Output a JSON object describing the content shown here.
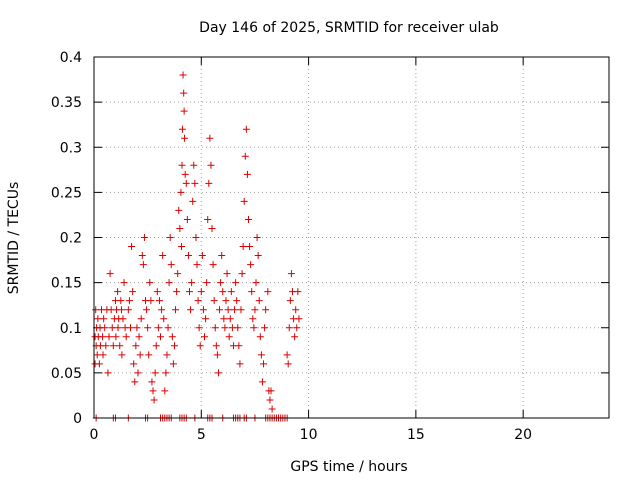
{
  "chart_data": {
    "type": "scatter",
    "title": "Day 146 of 2025, SRMTID for receiver ulab",
    "xlabel": "GPS time / hours",
    "ylabel": "SRMTID / TECUs",
    "xlim": [
      0,
      24
    ],
    "ylim": [
      0,
      0.4
    ],
    "x_ticks": [
      0,
      5,
      10,
      15,
      20
    ],
    "y_ticks": [
      0,
      0.05,
      0.1,
      0.15,
      0.2,
      0.25,
      0.3,
      0.35,
      0.4
    ],
    "x_tick_labels": [
      "0",
      "5",
      "10",
      "15",
      "20"
    ],
    "y_tick_labels": [
      "0",
      "0.05",
      "0.1",
      "0.15",
      "0.2",
      "0.25",
      "0.3",
      "0.35",
      "0.4"
    ],
    "grid": true,
    "marker": "+",
    "color": "#dd0000",
    "series": [
      {
        "name": "SRMTID",
        "points": [
          [
            0.05,
            0.06
          ],
          [
            0.05,
            0.09
          ],
          [
            0.08,
            0.12
          ],
          [
            0.1,
            0.08
          ],
          [
            0.12,
            0.1
          ],
          [
            0.15,
            0.07
          ],
          [
            0.18,
            0.11
          ],
          [
            0.2,
            0.09
          ],
          [
            0.25,
            0.06
          ],
          [
            0.28,
            0.1
          ],
          [
            0.3,
            0.08
          ],
          [
            0.35,
            0.12
          ],
          [
            0.4,
            0.09
          ],
          [
            0.42,
            0.07
          ],
          [
            0.45,
            0.11
          ],
          [
            0.5,
            0.1
          ],
          [
            0.55,
            0.08
          ],
          [
            0.6,
            0.12
          ],
          [
            0.65,
            0.05
          ],
          [
            0.7,
            0.09
          ],
          [
            0.75,
            0.16
          ],
          [
            0.8,
            0.12
          ],
          [
            0.85,
            0.1
          ],
          [
            0.9,
            0.08
          ],
          [
            0.95,
            0.11
          ],
          [
            1.0,
            0.13
          ],
          [
            1.02,
            0.09
          ],
          [
            1.05,
            0.12
          ],
          [
            1.1,
            0.14
          ],
          [
            1.12,
            0.1
          ],
          [
            1.15,
            0.11
          ],
          [
            1.2,
            0.08
          ],
          [
            1.25,
            0.13
          ],
          [
            1.28,
            0.12
          ],
          [
            1.3,
            0.07
          ],
          [
            1.35,
            0.11
          ],
          [
            1.4,
            0.15
          ],
          [
            1.45,
            0.1
          ],
          [
            1.5,
            0.09
          ],
          [
            1.6,
            0.12
          ],
          [
            1.65,
            0.13
          ],
          [
            1.7,
            0.1
          ],
          [
            1.75,
            0.19
          ],
          [
            1.8,
            0.14
          ],
          [
            1.85,
            0.06
          ],
          [
            1.9,
            0.04
          ],
          [
            1.95,
            0.08
          ],
          [
            2.0,
            0.1
          ],
          [
            2.05,
            0.05
          ],
          [
            2.1,
            0.09
          ],
          [
            2.15,
            0.07
          ],
          [
            2.2,
            0.11
          ],
          [
            2.25,
            0.18
          ],
          [
            2.3,
            0.17
          ],
          [
            2.35,
            0.2
          ],
          [
            2.4,
            0.13
          ],
          [
            2.45,
            0.12
          ],
          [
            2.5,
            0.1
          ],
          [
            2.55,
            0.07
          ],
          [
            2.6,
            0.15
          ],
          [
            2.65,
            0.13
          ],
          [
            2.7,
            0.04
          ],
          [
            2.75,
            0.03
          ],
          [
            2.8,
            0.02
          ],
          [
            2.85,
            0.05
          ],
          [
            2.9,
            0.08
          ],
          [
            2.95,
            0.14
          ],
          [
            3.0,
            0.1
          ],
          [
            3.05,
            0.13
          ],
          [
            3.1,
            0.09
          ],
          [
            3.15,
            0.12
          ],
          [
            3.2,
            0.18
          ],
          [
            3.25,
            0.11
          ],
          [
            3.3,
            0.03
          ],
          [
            3.35,
            0.05
          ],
          [
            3.4,
            0.07
          ],
          [
            3.45,
            0.1
          ],
          [
            3.5,
            0.15
          ],
          [
            3.55,
            0.2
          ],
          [
            3.6,
            0.17
          ],
          [
            3.65,
            0.09
          ],
          [
            3.7,
            0.06
          ],
          [
            3.75,
            0.08
          ],
          [
            3.8,
            0.12
          ],
          [
            3.85,
            0.14
          ],
          [
            3.9,
            0.16
          ],
          [
            3.95,
            0.23
          ],
          [
            4.0,
            0.21
          ],
          [
            4.05,
            0.25
          ],
          [
            4.08,
            0.19
          ],
          [
            4.1,
            0.28
          ],
          [
            4.12,
            0.32
          ],
          [
            4.15,
            0.38
          ],
          [
            4.18,
            0.36
          ],
          [
            4.2,
            0.34
          ],
          [
            4.22,
            0.31
          ],
          [
            4.25,
            0.27
          ],
          [
            4.3,
            0.26
          ],
          [
            4.35,
            0.22
          ],
          [
            4.4,
            0.18
          ],
          [
            4.45,
            0.14
          ],
          [
            4.5,
            0.12
          ],
          [
            4.55,
            0.15
          ],
          [
            4.6,
            0.24
          ],
          [
            4.65,
            0.28
          ],
          [
            4.7,
            0.26
          ],
          [
            4.75,
            0.2
          ],
          [
            4.8,
            0.17
          ],
          [
            4.85,
            0.13
          ],
          [
            4.9,
            0.1
          ],
          [
            4.95,
            0.08
          ],
          [
            5.0,
            0.14
          ],
          [
            5.05,
            0.18
          ],
          [
            5.1,
            0.12
          ],
          [
            5.15,
            0.09
          ],
          [
            5.2,
            0.11
          ],
          [
            5.25,
            0.15
          ],
          [
            5.3,
            0.22
          ],
          [
            5.35,
            0.26
          ],
          [
            5.4,
            0.31
          ],
          [
            5.45,
            0.28
          ],
          [
            5.5,
            0.21
          ],
          [
            5.55,
            0.17
          ],
          [
            5.6,
            0.13
          ],
          [
            5.65,
            0.1
          ],
          [
            5.7,
            0.08
          ],
          [
            5.75,
            0.07
          ],
          [
            5.8,
            0.05
          ],
          [
            5.85,
            0.12
          ],
          [
            5.9,
            0.15
          ],
          [
            5.95,
            0.18
          ],
          [
            6.0,
            0.14
          ],
          [
            6.05,
            0.11
          ],
          [
            6.1,
            0.1
          ],
          [
            6.15,
            0.13
          ],
          [
            6.2,
            0.16
          ],
          [
            6.25,
            0.12
          ],
          [
            6.3,
            0.09
          ],
          [
            6.35,
            0.11
          ],
          [
            6.4,
            0.14
          ],
          [
            6.45,
            0.1
          ],
          [
            6.5,
            0.08
          ],
          [
            6.55,
            0.12
          ],
          [
            6.6,
            0.15
          ],
          [
            6.65,
            0.13
          ],
          [
            6.7,
            0.1
          ],
          [
            6.75,
            0.08
          ],
          [
            6.8,
            0.06
          ],
          [
            6.85,
            0.12
          ],
          [
            6.9,
            0.16
          ],
          [
            6.95,
            0.19
          ],
          [
            7.0,
            0.24
          ],
          [
            7.05,
            0.29
          ],
          [
            7.1,
            0.32
          ],
          [
            7.15,
            0.27
          ],
          [
            7.2,
            0.22
          ],
          [
            7.25,
            0.19
          ],
          [
            7.3,
            0.17
          ],
          [
            7.35,
            0.14
          ],
          [
            7.4,
            0.11
          ],
          [
            7.45,
            0.1
          ],
          [
            7.5,
            0.12
          ],
          [
            7.55,
            0.15
          ],
          [
            7.6,
            0.2
          ],
          [
            7.65,
            0.18
          ],
          [
            7.7,
            0.13
          ],
          [
            7.75,
            0.09
          ],
          [
            7.8,
            0.07
          ],
          [
            7.85,
            0.04
          ],
          [
            7.9,
            0.06
          ],
          [
            7.95,
            0.1
          ],
          [
            8.0,
            0.12
          ],
          [
            8.1,
            0.14
          ],
          [
            8.15,
            0.03
          ],
          [
            8.2,
            0.02
          ],
          [
            8.25,
            0.03
          ],
          [
            8.3,
            0.01
          ],
          [
            9.0,
            0.07
          ],
          [
            9.05,
            0.06
          ],
          [
            9.1,
            0.1
          ],
          [
            9.15,
            0.13
          ],
          [
            9.2,
            0.16
          ],
          [
            9.25,
            0.14
          ],
          [
            9.3,
            0.11
          ],
          [
            9.35,
            0.09
          ],
          [
            9.4,
            0.12
          ],
          [
            9.45,
            0.1
          ],
          [
            9.5,
            0.14
          ],
          [
            9.55,
            0.11
          ],
          [
            0.1,
            0.0
          ],
          [
            0.9,
            0.0
          ],
          [
            1.0,
            0.0
          ],
          [
            1.6,
            0.0
          ],
          [
            2.4,
            0.0
          ],
          [
            2.5,
            0.0
          ],
          [
            3.1,
            0.0
          ],
          [
            3.2,
            0.0
          ],
          [
            3.3,
            0.0
          ],
          [
            3.4,
            0.0
          ],
          [
            3.5,
            0.0
          ],
          [
            3.6,
            0.0
          ],
          [
            4.0,
            0.0
          ],
          [
            4.1,
            0.0
          ],
          [
            4.2,
            0.0
          ],
          [
            4.3,
            0.0
          ],
          [
            4.7,
            0.0
          ],
          [
            5.3,
            0.0
          ],
          [
            5.4,
            0.0
          ],
          [
            5.5,
            0.0
          ],
          [
            6.0,
            0.0
          ],
          [
            6.5,
            0.0
          ],
          [
            6.6,
            0.0
          ],
          [
            6.7,
            0.0
          ],
          [
            6.8,
            0.0
          ],
          [
            7.0,
            0.0
          ],
          [
            7.1,
            0.0
          ],
          [
            7.5,
            0.0
          ],
          [
            8.0,
            0.0
          ],
          [
            8.1,
            0.0
          ],
          [
            8.2,
            0.0
          ],
          [
            8.3,
            0.0
          ],
          [
            8.4,
            0.0
          ],
          [
            8.5,
            0.0
          ],
          [
            8.6,
            0.0
          ],
          [
            8.7,
            0.0
          ],
          [
            8.8,
            0.0
          ],
          [
            8.9,
            0.0
          ],
          [
            9.0,
            0.0
          ]
        ]
      }
    ]
  }
}
